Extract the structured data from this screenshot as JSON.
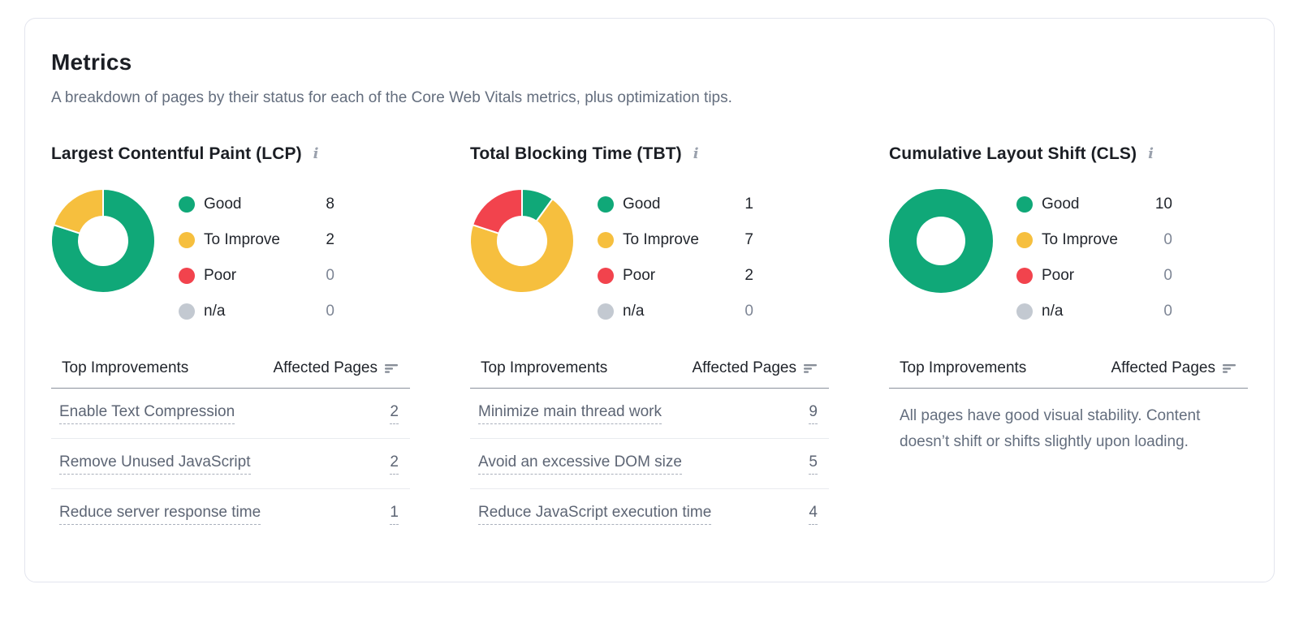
{
  "card": {
    "title": "Metrics",
    "subtitle": "A breakdown of pages by their status for each of the Core Web Vitals metrics, plus optimization tips."
  },
  "icons": {
    "info": "i"
  },
  "colors": {
    "good": "#10a878",
    "to_improve": "#f6bf3e",
    "poor": "#f2434d",
    "na": "#c3c9d1"
  },
  "table_headers": {
    "improvements": "Top Improvements",
    "affected": "Affected Pages"
  },
  "metrics": [
    {
      "title": "Largest Contentful Paint (LCP)",
      "legend": [
        {
          "key": "good",
          "label": "Good",
          "value": 8
        },
        {
          "key": "to_improve",
          "label": "To Improve",
          "value": 2
        },
        {
          "key": "poor",
          "label": "Poor",
          "value": 0
        },
        {
          "key": "na",
          "label": "n/a",
          "value": 0
        }
      ],
      "rows": [
        {
          "label": "Enable Text Compression",
          "value": 2
        },
        {
          "label": "Remove Unused JavaScript",
          "value": 2
        },
        {
          "label": "Reduce server response time",
          "value": 1
        }
      ]
    },
    {
      "title": "Total Blocking Time (TBT)",
      "legend": [
        {
          "key": "good",
          "label": "Good",
          "value": 1
        },
        {
          "key": "to_improve",
          "label": "To Improve",
          "value": 7
        },
        {
          "key": "poor",
          "label": "Poor",
          "value": 2
        },
        {
          "key": "na",
          "label": "n/a",
          "value": 0
        }
      ],
      "rows": [
        {
          "label": "Minimize main thread work",
          "value": 9
        },
        {
          "label": "Avoid an excessive DOM size",
          "value": 5
        },
        {
          "label": "Reduce JavaScript execution time",
          "value": 4
        }
      ]
    },
    {
      "title": "Cumulative Layout Shift (CLS)",
      "legend": [
        {
          "key": "good",
          "label": "Good",
          "value": 10
        },
        {
          "key": "to_improve",
          "label": "To Improve",
          "value": 0
        },
        {
          "key": "poor",
          "label": "Poor",
          "value": 0
        },
        {
          "key": "na",
          "label": "n/a",
          "value": 0
        }
      ],
      "message": "All pages have good visual stability. Content doesn’t shift or shifts slightly upon loading."
    }
  ],
  "chart_data": [
    {
      "type": "pie",
      "title": "Largest Contentful Paint (LCP)",
      "categories": [
        "Good",
        "To Improve",
        "Poor",
        "n/a"
      ],
      "values": [
        8,
        2,
        0,
        0
      ],
      "legend_position": "right"
    },
    {
      "type": "pie",
      "title": "Total Blocking Time (TBT)",
      "categories": [
        "Good",
        "To Improve",
        "Poor",
        "n/a"
      ],
      "values": [
        1,
        7,
        2,
        0
      ],
      "legend_position": "right"
    },
    {
      "type": "pie",
      "title": "Cumulative Layout Shift (CLS)",
      "categories": [
        "Good",
        "To Improve",
        "Poor",
        "n/a"
      ],
      "values": [
        10,
        0,
        0,
        0
      ],
      "legend_position": "right"
    }
  ]
}
